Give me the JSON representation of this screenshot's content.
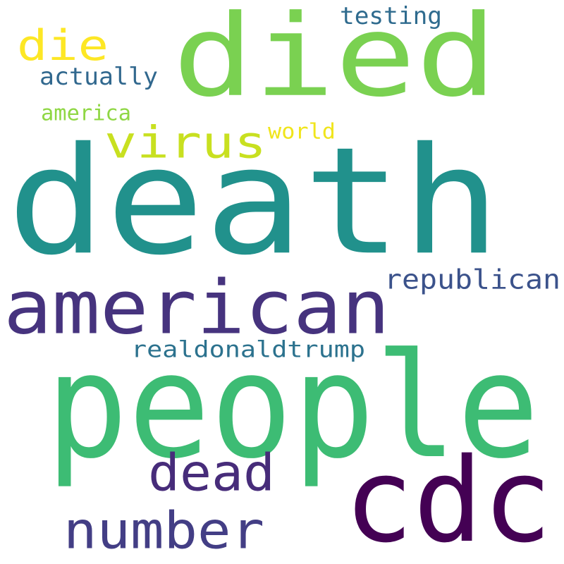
{
  "words": [
    {
      "text": "death",
      "color": "#21918c"
    },
    {
      "text": "died",
      "color": "#7ad151"
    },
    {
      "text": "people",
      "color": "#3dbc74"
    },
    {
      "text": "american",
      "color": "#46337e"
    },
    {
      "text": "cdc",
      "color": "#440154"
    },
    {
      "text": "number",
      "color": "#433e85"
    },
    {
      "text": "virus",
      "color": "#c8e020"
    },
    {
      "text": "dead",
      "color": "#472c7a"
    },
    {
      "text": "die",
      "color": "#fde725"
    },
    {
      "text": "republican",
      "color": "#3b528b"
    },
    {
      "text": "realdonaldtrump",
      "color": "#2c728e"
    },
    {
      "text": "actually",
      "color": "#31688e"
    },
    {
      "text": "testing",
      "color": "#2f6b8e"
    },
    {
      "text": "america",
      "color": "#8fd744"
    },
    {
      "text": "world",
      "color": "#f0e51c"
    }
  ]
}
